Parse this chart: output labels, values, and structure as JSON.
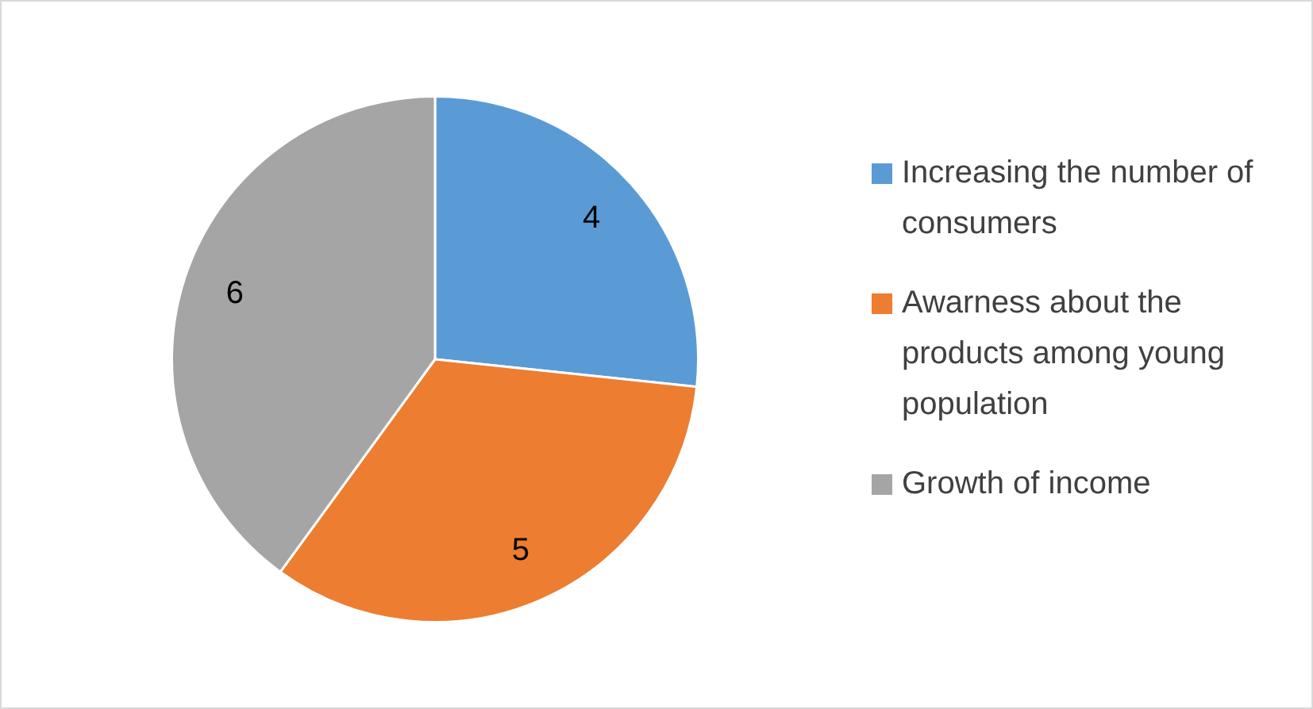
{
  "chart_data": {
    "type": "pie",
    "categories": [
      "Increasing the number of consumers",
      "Awarness about the products among young population",
      "Growth of income"
    ],
    "values": [
      4,
      5,
      6
    ],
    "colors": [
      "#5b9bd5",
      "#ed7d31",
      "#a5a5a5"
    ],
    "data_labels": true,
    "legend": "right"
  }
}
